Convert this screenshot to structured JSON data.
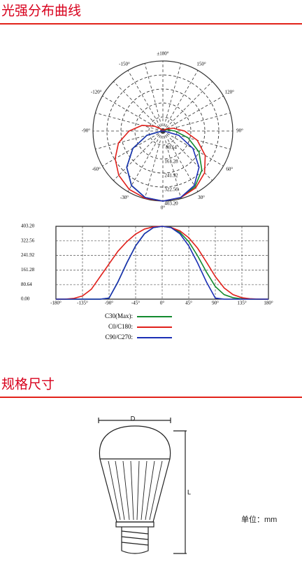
{
  "sections": [
    {
      "title": "光强分布曲线",
      "chart_data": {
        "type": "line",
        "x": [
          -180,
          -165,
          -150,
          -135,
          -120,
          -105,
          -90,
          -75,
          -60,
          -45,
          -30,
          -15,
          0,
          15,
          30,
          45,
          60,
          75,
          90,
          105,
          120,
          135,
          150,
          165,
          180
        ],
        "series": [
          {
            "name": "C30(Max):",
            "color": "#138a2e",
            "values": [
              0,
              0,
              0,
              0,
              0,
              0,
              6,
              95,
              200,
              295,
              362,
              396,
              403.2,
              398,
              370,
              318,
              240,
              150,
              70,
              25,
              8,
              2,
              0,
              0,
              0
            ]
          },
          {
            "name": "C0/C180:",
            "color": "#e0201b",
            "values": [
              0,
              0,
              4,
              18,
              55,
              125,
              195,
              265,
              318,
              360,
              388,
              400,
              403.2,
              397,
              378,
              340,
              282,
              205,
              125,
              62,
              25,
              8,
              2,
              0,
              0
            ]
          },
          {
            "name": "C90/C270:",
            "color": "#1b2fb5",
            "values": [
              0,
              0,
              0,
              0,
              0,
              0,
              6,
              95,
              200,
              295,
              362,
              396,
              403.2,
              396,
              362,
              295,
              200,
              95,
              6,
              0,
              0,
              0,
              0,
              0,
              0
            ]
          }
        ],
        "xlim": [
          -180,
          180
        ],
        "xticks": [
          {
            "value": -180,
            "label": "-180°"
          },
          {
            "value": -135,
            "label": "-135°"
          },
          {
            "value": -90,
            "label": "-90°"
          },
          {
            "value": -45,
            "label": "-45°"
          },
          {
            "value": 0,
            "label": "0°"
          },
          {
            "value": 45,
            "label": "45°"
          },
          {
            "value": 90,
            "label": "90°"
          },
          {
            "value": 135,
            "label": "135°"
          },
          {
            "value": 180,
            "label": "180°"
          }
        ],
        "ylim": [
          0,
          403.2
        ],
        "yticks": [
          {
            "value": 0,
            "label": "0.00"
          },
          80.64,
          161.28,
          241.92,
          322.56,
          {
            "value": 403.2,
            "label": "403.20"
          }
        ],
        "grid": true,
        "polar": {
          "angle_ticks": [
            {
              "value": 180,
              "label": "±180°"
            },
            {
              "value": -150,
              "label": "-150°"
            },
            {
              "value": 150,
              "label": "150°"
            },
            {
              "value": -120,
              "label": "-120°"
            },
            {
              "value": 120,
              "label": "120°"
            },
            {
              "value": -90,
              "label": "-90°"
            },
            {
              "value": 90,
              "label": "90°"
            },
            {
              "value": -60,
              "label": "-60°"
            },
            {
              "value": 60,
              "label": "60°"
            },
            {
              "value": -30,
              "label": "-30°"
            },
            {
              "value": 30,
              "label": "30°"
            },
            {
              "value": 0,
              "label": "0°"
            }
          ],
          "rlim": [
            0,
            403.2
          ],
          "rticks": [
            80.64,
            161.28,
            241.92,
            322.56,
            {
              "value": 403.2,
              "label": "403.20"
            }
          ]
        }
      }
    },
    {
      "title": "规格尺寸",
      "diagram": {
        "width_label": "D",
        "length_label": "L",
        "unit_note": "单位：mm"
      }
    }
  ]
}
